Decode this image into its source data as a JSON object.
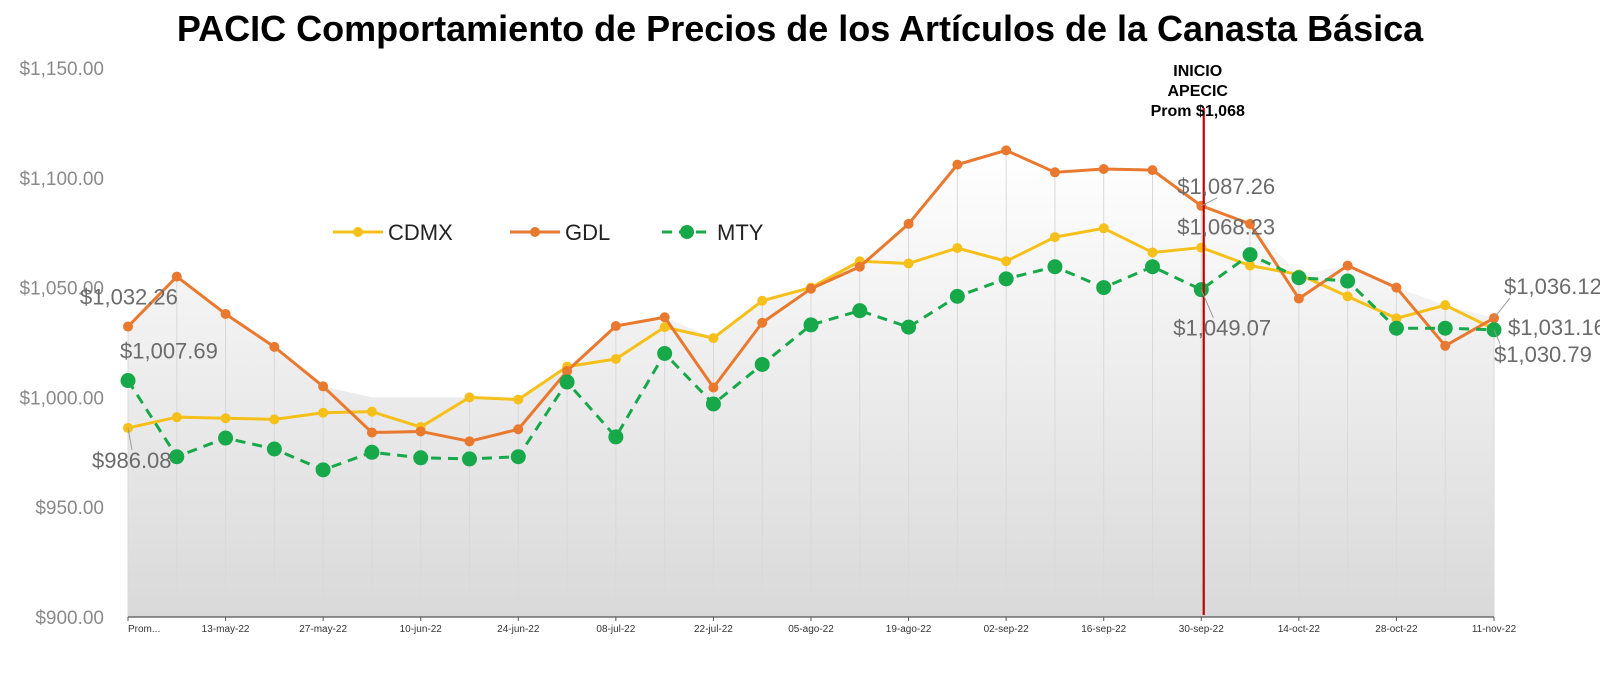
{
  "chart_data": {
    "type": "line",
    "title": "PACIC Comportamiento de Precios de los Artículos de la Canasta Básica",
    "xlabel": "",
    "ylabel": "",
    "ylim": [
      900,
      1150
    ],
    "yticks": [
      "$900.00",
      "$950.00",
      "$1,000.00",
      "$1,050.00",
      "$1,100.00",
      "$1,150.00"
    ],
    "ytick_values": [
      900,
      950,
      1000,
      1050,
      1100,
      1150
    ],
    "x_count": 29,
    "xtick_labels": [
      {
        "i": 0,
        "label": "Prom..."
      },
      {
        "i": 2,
        "label": "13-may-22"
      },
      {
        "i": 4,
        "label": "27-may-22"
      },
      {
        "i": 6,
        "label": "10-jun-22"
      },
      {
        "i": 8,
        "label": "24-jun-22"
      },
      {
        "i": 10,
        "label": "08-jul-22"
      },
      {
        "i": 12,
        "label": "22-jul-22"
      },
      {
        "i": 14,
        "label": "05-ago-22"
      },
      {
        "i": 16,
        "label": "19-ago-22"
      },
      {
        "i": 18,
        "label": "02-sep-22"
      },
      {
        "i": 20,
        "label": "16-sep-22"
      },
      {
        "i": 22,
        "label": "30-sep-22"
      },
      {
        "i": 24,
        "label": "14-oct-22"
      },
      {
        "i": 26,
        "label": "28-oct-22"
      },
      {
        "i": 28,
        "label": "11-nov-22"
      }
    ],
    "legend_position": "upper-left-inside",
    "grid": "vertical-lines",
    "series": [
      {
        "name": "CDMX",
        "color": "#F5C01A",
        "style": "solid",
        "values": [
          986.08,
          991,
          990.5,
          990,
          993,
          993.5,
          986.5,
          1000,
          999,
          1014,
          1017.5,
          1032,
          1027,
          1044,
          1050,
          1062,
          1061,
          1068,
          1062,
          1073,
          1077,
          1066,
          1068.23,
          1060,
          1056,
          1046,
          1036,
          1042,
          1031.16
        ]
      },
      {
        "name": "GDL",
        "color": "#E8792E",
        "style": "solid",
        "values": [
          1032.26,
          1055,
          1038,
          1023,
          1005,
          984,
          984.5,
          980,
          985.5,
          1012,
          1032.5,
          1036.5,
          1004.5,
          1034,
          1049.5,
          1059.5,
          1079,
          1106,
          1112.5,
          1102.5,
          1104,
          1103.5,
          1087.26,
          1079,
          1045,
          1060,
          1050,
          1023.5,
          1036.12
        ]
      },
      {
        "name": "MTY",
        "color": "#17A84A",
        "style": "dashed",
        "values": [
          1007.69,
          973,
          981.5,
          976.5,
          967,
          975,
          972.5,
          972,
          973,
          1007,
          982,
          1020,
          997,
          1015,
          1033,
          1039.5,
          1032,
          1046,
          1054,
          1059.5,
          1050,
          1059.5,
          1049.07,
          1065,
          1054.5,
          1053,
          1031.5,
          1031.5,
          1030.79
        ]
      }
    ],
    "data_labels": [
      {
        "series": "GDL",
        "i": 0,
        "text": "$1,032.26"
      },
      {
        "series": "MTY",
        "i": 0,
        "text": "$1,007.69"
      },
      {
        "series": "CDMX",
        "i": 0,
        "text": "$986.08"
      },
      {
        "series": "GDL",
        "i": 22,
        "text": "$1,087.26"
      },
      {
        "series": "CDMX",
        "i": 22,
        "text": "$1,068.23"
      },
      {
        "series": "MTY",
        "i": 22,
        "text": "$1,049.07"
      },
      {
        "series": "GDL",
        "i": 28,
        "text": "$1,036.12"
      },
      {
        "series": "CDMX",
        "i": 28,
        "text": "$1,031.16"
      },
      {
        "series": "MTY",
        "i": 28,
        "text": "$1,030.79"
      }
    ],
    "annotation": {
      "lines": [
        "INICIO",
        "APECIC",
        "Prom $1,068"
      ],
      "at_index": 22.05,
      "color": "#C00000"
    }
  }
}
